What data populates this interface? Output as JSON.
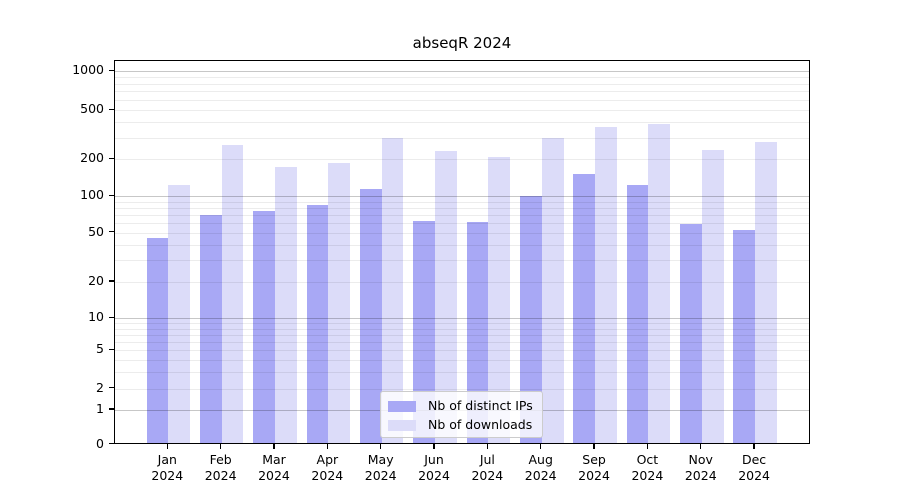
{
  "chart_data": {
    "type": "bar",
    "title": "abseqR 2024",
    "categories": [
      "Jan 2024",
      "Feb 2024",
      "Mar 2024",
      "Apr 2024",
      "May 2024",
      "Jun 2024",
      "Jul 2024",
      "Aug 2024",
      "Sep 2024",
      "Oct 2024",
      "Nov 2024",
      "Dec 2024"
    ],
    "series": [
      {
        "name": "Nb of distinct IPs",
        "color": "#a8a8f5",
        "values": [
          44,
          68,
          73,
          82,
          111,
          61,
          59,
          98,
          147,
          119,
          57,
          51
        ]
      },
      {
        "name": "Nb of downloads",
        "color": "#dcdcf9",
        "values": [
          119,
          252,
          168,
          182,
          288,
          229,
          204,
          288,
          354,
          375,
          233,
          271
        ]
      }
    ],
    "xlabel": "",
    "ylabel": "",
    "yaxis": {
      "scale": "symlog",
      "ticks": [
        0,
        1,
        2,
        5,
        10,
        20,
        50,
        100,
        200,
        500,
        1000
      ],
      "ylim": [
        0,
        1300
      ]
    },
    "grid": "both",
    "legend_position": "lower center inside"
  }
}
